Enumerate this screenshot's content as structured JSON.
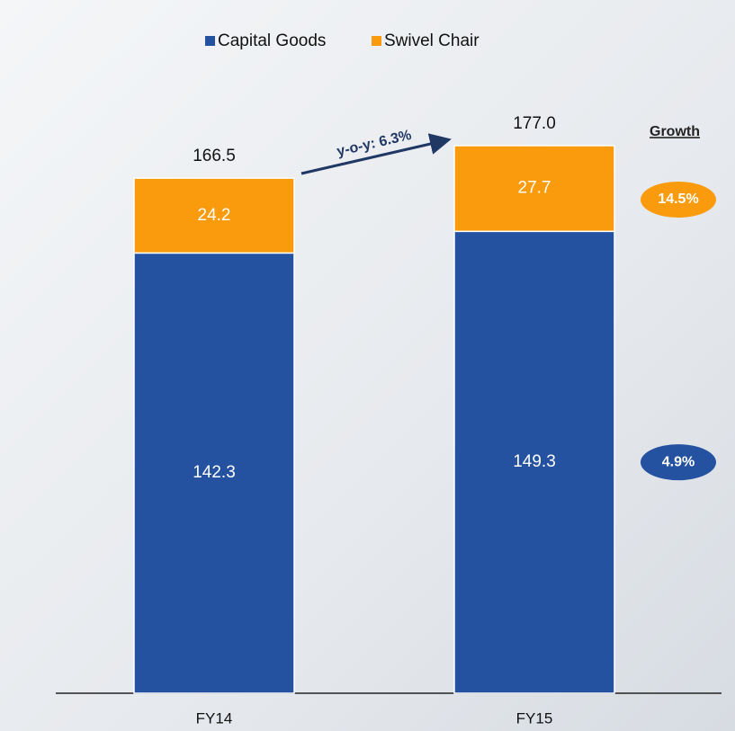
{
  "chart_data": {
    "type": "stacked_bar",
    "categories": [
      "FY14",
      "FY15"
    ],
    "series": [
      {
        "name": "Capital Goods",
        "color": "#2452a0",
        "values": [
          142.3,
          149.3
        ],
        "growth": "4.9%"
      },
      {
        "name": "Swivel Chair",
        "color": "#f99b0c",
        "values": [
          24.2,
          27.7
        ],
        "growth": "14.5%"
      }
    ],
    "totals": {
      "values": [
        166.5,
        177.0
      ],
      "value_labels": [
        "166.5",
        "177.0"
      ]
    },
    "growth_header": "Growth",
    "annotation": "y-o-y: 6.3%"
  }
}
